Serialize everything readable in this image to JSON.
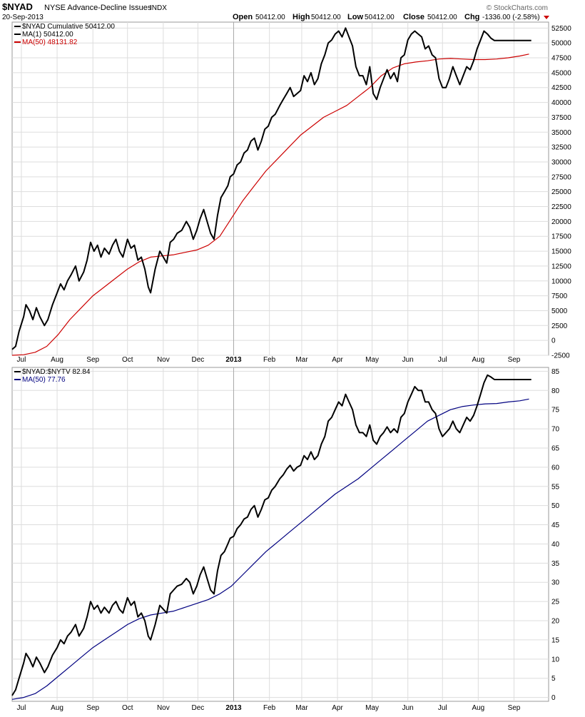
{
  "header": {
    "symbol": "$NYAD",
    "name": "NYSE Advance-Decline Issues",
    "exchange": "INDX",
    "date": "20-Sep-2013",
    "open_label": "Open",
    "open": "50412.00",
    "high_label": "High",
    "high": "50412.00",
    "low_label": "Low",
    "low": "50412.00",
    "close_label": "Close",
    "close": "50412.00",
    "chg_label": "Chg",
    "chg": "-1336.00 (-2.58%)",
    "watermark": "© StockCharts.com"
  },
  "colors": {
    "price": "#000000",
    "ma_red": "#cc0000",
    "ma_blue": "#000080",
    "grid": "#dddddd",
    "border": "#999999"
  },
  "chart_data": [
    {
      "type": "line",
      "panel": "top",
      "legend": [
        {
          "label": "$NYAD  Cumulative 50412.00",
          "color": "#000000"
        },
        {
          "label": "MA(1) 50412.00",
          "color": "#000000"
        },
        {
          "label": "MA(50) 48131.82",
          "color": "#cc0000"
        }
      ],
      "y_ticks": [
        "52500",
        "50000",
        "47500",
        "45000",
        "42500",
        "40000",
        "37500",
        "35000",
        "32500",
        "30000",
        "27500",
        "25000",
        "22500",
        "20000",
        "17500",
        "15000",
        "12500",
        "10000",
        "7500",
        "5000",
        "2500",
        "0",
        "-2500"
      ],
      "ylim": [
        -2500,
        53500
      ],
      "x_ticks": [
        "Jul",
        "Aug",
        "Sep",
        "Oct",
        "Nov",
        "Dec",
        "2013",
        "Feb",
        "Mar",
        "Apr",
        "May",
        "Jun",
        "Jul",
        "Aug",
        "Sep"
      ],
      "x_tick_days": [
        8,
        39,
        70,
        100,
        131,
        161,
        192,
        223,
        251,
        282,
        312,
        343,
        373,
        404,
        435
      ],
      "x_range": [
        0,
        465
      ],
      "year_day": 192,
      "series": [
        {
          "name": "$NYAD",
          "color": "#000000",
          "x": [
            0,
            3,
            6,
            10,
            12,
            15,
            18,
            21,
            24,
            28,
            31,
            35,
            39,
            42,
            45,
            48,
            51,
            55,
            58,
            62,
            65,
            68,
            71,
            74,
            77,
            80,
            84,
            87,
            90,
            93,
            96,
            100,
            103,
            106,
            109,
            112,
            115,
            118,
            120,
            124,
            128,
            131,
            134,
            137,
            140,
            143,
            147,
            151,
            154,
            157,
            160,
            163,
            166,
            169,
            172,
            175,
            178,
            181,
            184,
            187,
            189,
            192,
            195,
            198,
            201,
            204,
            207,
            210,
            213,
            216,
            219,
            222,
            225,
            228,
            232,
            235,
            238,
            241,
            244,
            247,
            250,
            253,
            256,
            259,
            262,
            265,
            268,
            271,
            274,
            277,
            280,
            283,
            286,
            289,
            292,
            295,
            298,
            301,
            304,
            307,
            310,
            313,
            316,
            319,
            322,
            325,
            328,
            331,
            334,
            337,
            340,
            343,
            346,
            349,
            352,
            355,
            358,
            361,
            364,
            367,
            370,
            373,
            376,
            379,
            382,
            385,
            388,
            391,
            394,
            397,
            400,
            403,
            406,
            409,
            412,
            415,
            418,
            421,
            424,
            427,
            430,
            433,
            436,
            439,
            442,
            445,
            448,
            450
          ],
          "values": [
            -1500,
            -1000,
            1500,
            4000,
            6000,
            5000,
            3500,
            5500,
            4000,
            2500,
            3500,
            6000,
            8000,
            9500,
            8500,
            10000,
            11000,
            12500,
            10000,
            11500,
            13500,
            16500,
            15000,
            16000,
            14000,
            15500,
            14500,
            16000,
            17000,
            15000,
            14000,
            17000,
            15500,
            16000,
            13500,
            14000,
            12000,
            9000,
            8000,
            12000,
            15000,
            14000,
            13000,
            16500,
            17000,
            18000,
            18500,
            20000,
            19000,
            17000,
            18500,
            20500,
            22000,
            20000,
            18000,
            17000,
            21000,
            24000,
            25000,
            26000,
            27500,
            28000,
            29500,
            30000,
            31500,
            32000,
            33500,
            34000,
            32000,
            33500,
            35500,
            36000,
            37500,
            38000,
            39500,
            40500,
            41500,
            42500,
            41000,
            41500,
            42000,
            44500,
            43500,
            45000,
            43000,
            44000,
            46500,
            48000,
            50000,
            50500,
            51500,
            52000,
            51000,
            52500,
            51000,
            49500,
            46000,
            44500,
            44500,
            43000,
            46000,
            41500,
            40500,
            42500,
            44000,
            45500,
            44000,
            45000,
            43500,
            47500,
            48000,
            50500,
            51500,
            52000,
            51500,
            51000,
            49000,
            49500,
            48000,
            47500,
            44000,
            42500,
            42500,
            44000,
            46000,
            44500,
            43000,
            44500,
            46000,
            45500,
            47000,
            49000,
            50500,
            52000,
            51500,
            50800,
            50412,
            50412,
            50412,
            50412,
            50412,
            50412,
            50412,
            50412,
            50412,
            50412,
            50412,
            50412
          ]
        },
        {
          "name": "MA(50)",
          "color": "#cc0000",
          "x": [
            0,
            10,
            20,
            30,
            40,
            50,
            60,
            70,
            80,
            90,
            100,
            110,
            120,
            130,
            140,
            150,
            160,
            170,
            180,
            190,
            200,
            210,
            220,
            230,
            240,
            250,
            260,
            270,
            280,
            290,
            300,
            310,
            320,
            330,
            340,
            350,
            360,
            370,
            380,
            390,
            400,
            410,
            420,
            430,
            440,
            448
          ],
          "values": [
            -2500,
            -2400,
            -2000,
            -1000,
            1000,
            3500,
            5500,
            7500,
            9000,
            10500,
            12000,
            13200,
            14000,
            14200,
            14400,
            14800,
            15200,
            16000,
            17500,
            20500,
            23500,
            26000,
            28500,
            30500,
            32500,
            34500,
            36000,
            37500,
            38500,
            39500,
            41000,
            42500,
            44500,
            45800,
            46500,
            46800,
            47000,
            47300,
            47400,
            47300,
            47200,
            47200,
            47300,
            47500,
            47800,
            48131
          ]
        }
      ]
    },
    {
      "type": "line",
      "panel": "bottom",
      "legend": [
        {
          "label": "$NYAD:$NYTV  82.84",
          "color": "#000000"
        },
        {
          "label": "MA(50) 77.76",
          "color": "#000080"
        }
      ],
      "y_ticks": [
        "85",
        "80",
        "75",
        "70",
        "65",
        "60",
        "55",
        "50",
        "45",
        "40",
        "35",
        "30",
        "25",
        "20",
        "15",
        "10",
        "5",
        "0"
      ],
      "ylim": [
        -1,
        86
      ],
      "x_ticks": [
        "Jul",
        "Aug",
        "Sep",
        "Oct",
        "Nov",
        "Dec",
        "2013",
        "Feb",
        "Mar",
        "Apr",
        "May",
        "Jun",
        "Jul",
        "Aug",
        "Sep"
      ],
      "x_tick_days": [
        8,
        39,
        70,
        100,
        131,
        161,
        192,
        223,
        251,
        282,
        312,
        343,
        373,
        404,
        435
      ],
      "x_range": [
        0,
        465
      ],
      "year_day": 192,
      "series": [
        {
          "name": "$NYAD:$NYTV",
          "color": "#000000",
          "x": [
            0,
            3,
            6,
            10,
            12,
            15,
            18,
            21,
            24,
            28,
            31,
            35,
            39,
            42,
            45,
            48,
            51,
            55,
            58,
            62,
            65,
            68,
            71,
            74,
            77,
            80,
            84,
            87,
            90,
            93,
            96,
            100,
            103,
            106,
            109,
            112,
            115,
            118,
            120,
            124,
            128,
            131,
            134,
            137,
            140,
            143,
            147,
            151,
            154,
            157,
            160,
            163,
            166,
            169,
            172,
            175,
            178,
            181,
            184,
            187,
            189,
            192,
            195,
            198,
            201,
            204,
            207,
            210,
            213,
            216,
            219,
            222,
            225,
            228,
            232,
            235,
            238,
            241,
            244,
            247,
            250,
            253,
            256,
            259,
            262,
            265,
            268,
            271,
            274,
            277,
            280,
            283,
            286,
            289,
            292,
            295,
            298,
            301,
            304,
            307,
            310,
            313,
            316,
            319,
            322,
            325,
            328,
            331,
            334,
            337,
            340,
            343,
            346,
            349,
            352,
            355,
            358,
            361,
            364,
            367,
            370,
            373,
            376,
            379,
            382,
            385,
            388,
            391,
            394,
            397,
            400,
            403,
            406,
            409,
            412,
            415,
            418,
            421,
            424,
            427,
            430,
            433,
            436,
            439,
            442,
            445,
            448,
            450
          ],
          "values": [
            0.5,
            2,
            5,
            9,
            11.5,
            10,
            8,
            10.5,
            9,
            6.5,
            8,
            11,
            13,
            15,
            14,
            16,
            17,
            19,
            16,
            18,
            21,
            25,
            23,
            24,
            22,
            23.5,
            22,
            24,
            25,
            23,
            22,
            26,
            24,
            25,
            21,
            22,
            20,
            16,
            15,
            19,
            24,
            23,
            22,
            27,
            28,
            29,
            29.5,
            31,
            30,
            27,
            29,
            32,
            34,
            31,
            28,
            27,
            33,
            37,
            38,
            40,
            41.5,
            42,
            44,
            45,
            46.5,
            47,
            49,
            50,
            47,
            49,
            51.5,
            52,
            54,
            55,
            57,
            58,
            59.5,
            60.5,
            59,
            60,
            60.5,
            63,
            62,
            64,
            62,
            63,
            66,
            68,
            72,
            73,
            75,
            77,
            76,
            79,
            77,
            75,
            71,
            69,
            69,
            68,
            71,
            67,
            66,
            68,
            69,
            70.5,
            69,
            70,
            69,
            73,
            74,
            77,
            79,
            81,
            80,
            80,
            77,
            77,
            75,
            74,
            70,
            68,
            69,
            70,
            72,
            70,
            69,
            71,
            73,
            72,
            73.5,
            76,
            79,
            82,
            84,
            83.5,
            82.84,
            82.84,
            82.84,
            82.84,
            82.84,
            82.84,
            82.84,
            82.84,
            82.84,
            82.84,
            82.84,
            82.84
          ]
        },
        {
          "name": "MA(50)",
          "color": "#000080",
          "x": [
            0,
            10,
            20,
            30,
            40,
            50,
            60,
            70,
            80,
            90,
            100,
            110,
            120,
            130,
            140,
            150,
            160,
            170,
            180,
            190,
            200,
            210,
            220,
            230,
            240,
            250,
            260,
            270,
            280,
            290,
            300,
            310,
            320,
            330,
            340,
            350,
            360,
            370,
            380,
            390,
            400,
            410,
            420,
            430,
            440,
            448
          ],
          "values": [
            -0.5,
            0,
            1,
            3,
            5.5,
            8,
            10.5,
            13,
            15,
            17,
            19,
            20.5,
            21.5,
            22,
            22.5,
            23.5,
            24.5,
            25.5,
            27,
            29,
            32,
            35,
            38,
            40.5,
            43,
            45.5,
            48,
            50.5,
            53,
            55,
            57,
            59.5,
            62,
            64.5,
            67,
            69.5,
            72,
            73.5,
            75,
            75.8,
            76.2,
            76.5,
            76.6,
            77,
            77.3,
            77.76
          ]
        }
      ]
    }
  ]
}
